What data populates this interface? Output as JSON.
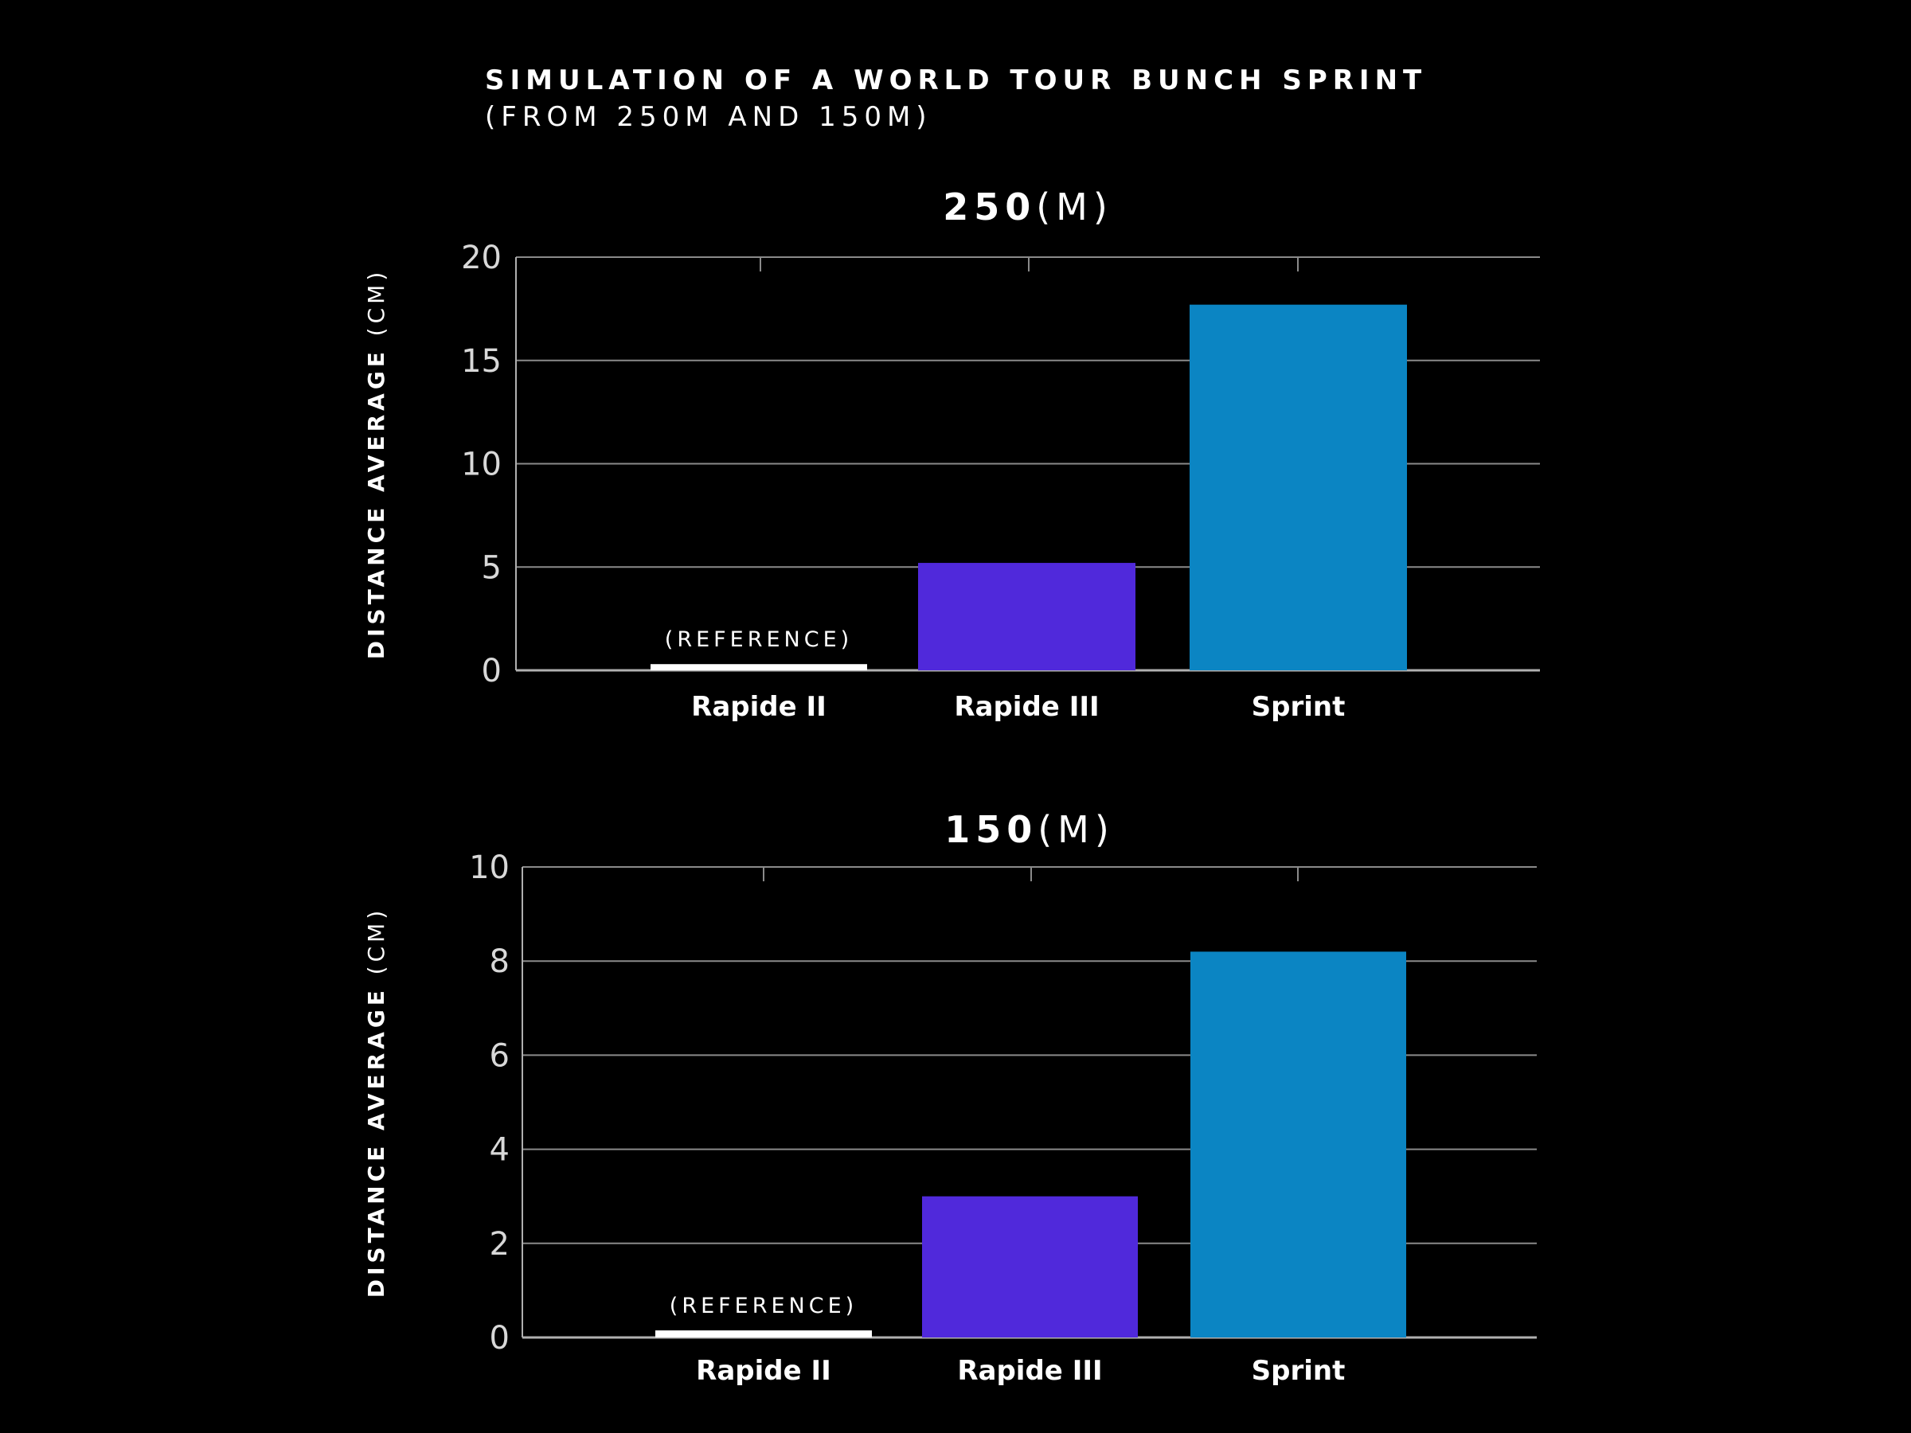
{
  "header": {
    "title": "SIMULATION OF A WORLD TOUR BUNCH SPRINT",
    "subtitle": "(FROM 250M AND 150M)"
  },
  "colors": {
    "background": "#000000",
    "reference": "#ffffff",
    "rapide_iii": "#5029db",
    "sprint": "#0b85c3",
    "grid": "#8a8a8a",
    "text": "#ffffff"
  },
  "chart_data": [
    {
      "type": "bar",
      "title_value": "250",
      "title_unit": "(M)",
      "ylabel_main": "DISTANCE AVERAGE",
      "ylabel_unit": "(CM)",
      "xlabel": "",
      "categories": [
        "Rapide II",
        "Rapide III",
        "Sprint"
      ],
      "values": [
        0.3,
        5.2,
        17.7
      ],
      "bar_colors": [
        "#ffffff",
        "#5029db",
        "#0b85c3"
      ],
      "bar_annotations": [
        "(REFERENCE)",
        "",
        ""
      ],
      "ylim": [
        0,
        20
      ],
      "yticks": [
        0,
        5,
        10,
        15,
        20
      ],
      "grid": true,
      "legend": "none"
    },
    {
      "type": "bar",
      "title_value": "150",
      "title_unit": "(M)",
      "ylabel_main": "DISTANCE AVERAGE",
      "ylabel_unit": "(CM)",
      "xlabel": "",
      "categories": [
        "Rapide II",
        "Rapide III",
        "Sprint"
      ],
      "values": [
        0.15,
        3.0,
        8.2
      ],
      "bar_colors": [
        "#ffffff",
        "#5029db",
        "#0b85c3"
      ],
      "bar_annotations": [
        "(REFERENCE)",
        "",
        ""
      ],
      "ylim": [
        0,
        10
      ],
      "yticks": [
        0,
        2,
        4,
        6,
        8,
        10
      ],
      "grid": true,
      "legend": "none"
    }
  ]
}
